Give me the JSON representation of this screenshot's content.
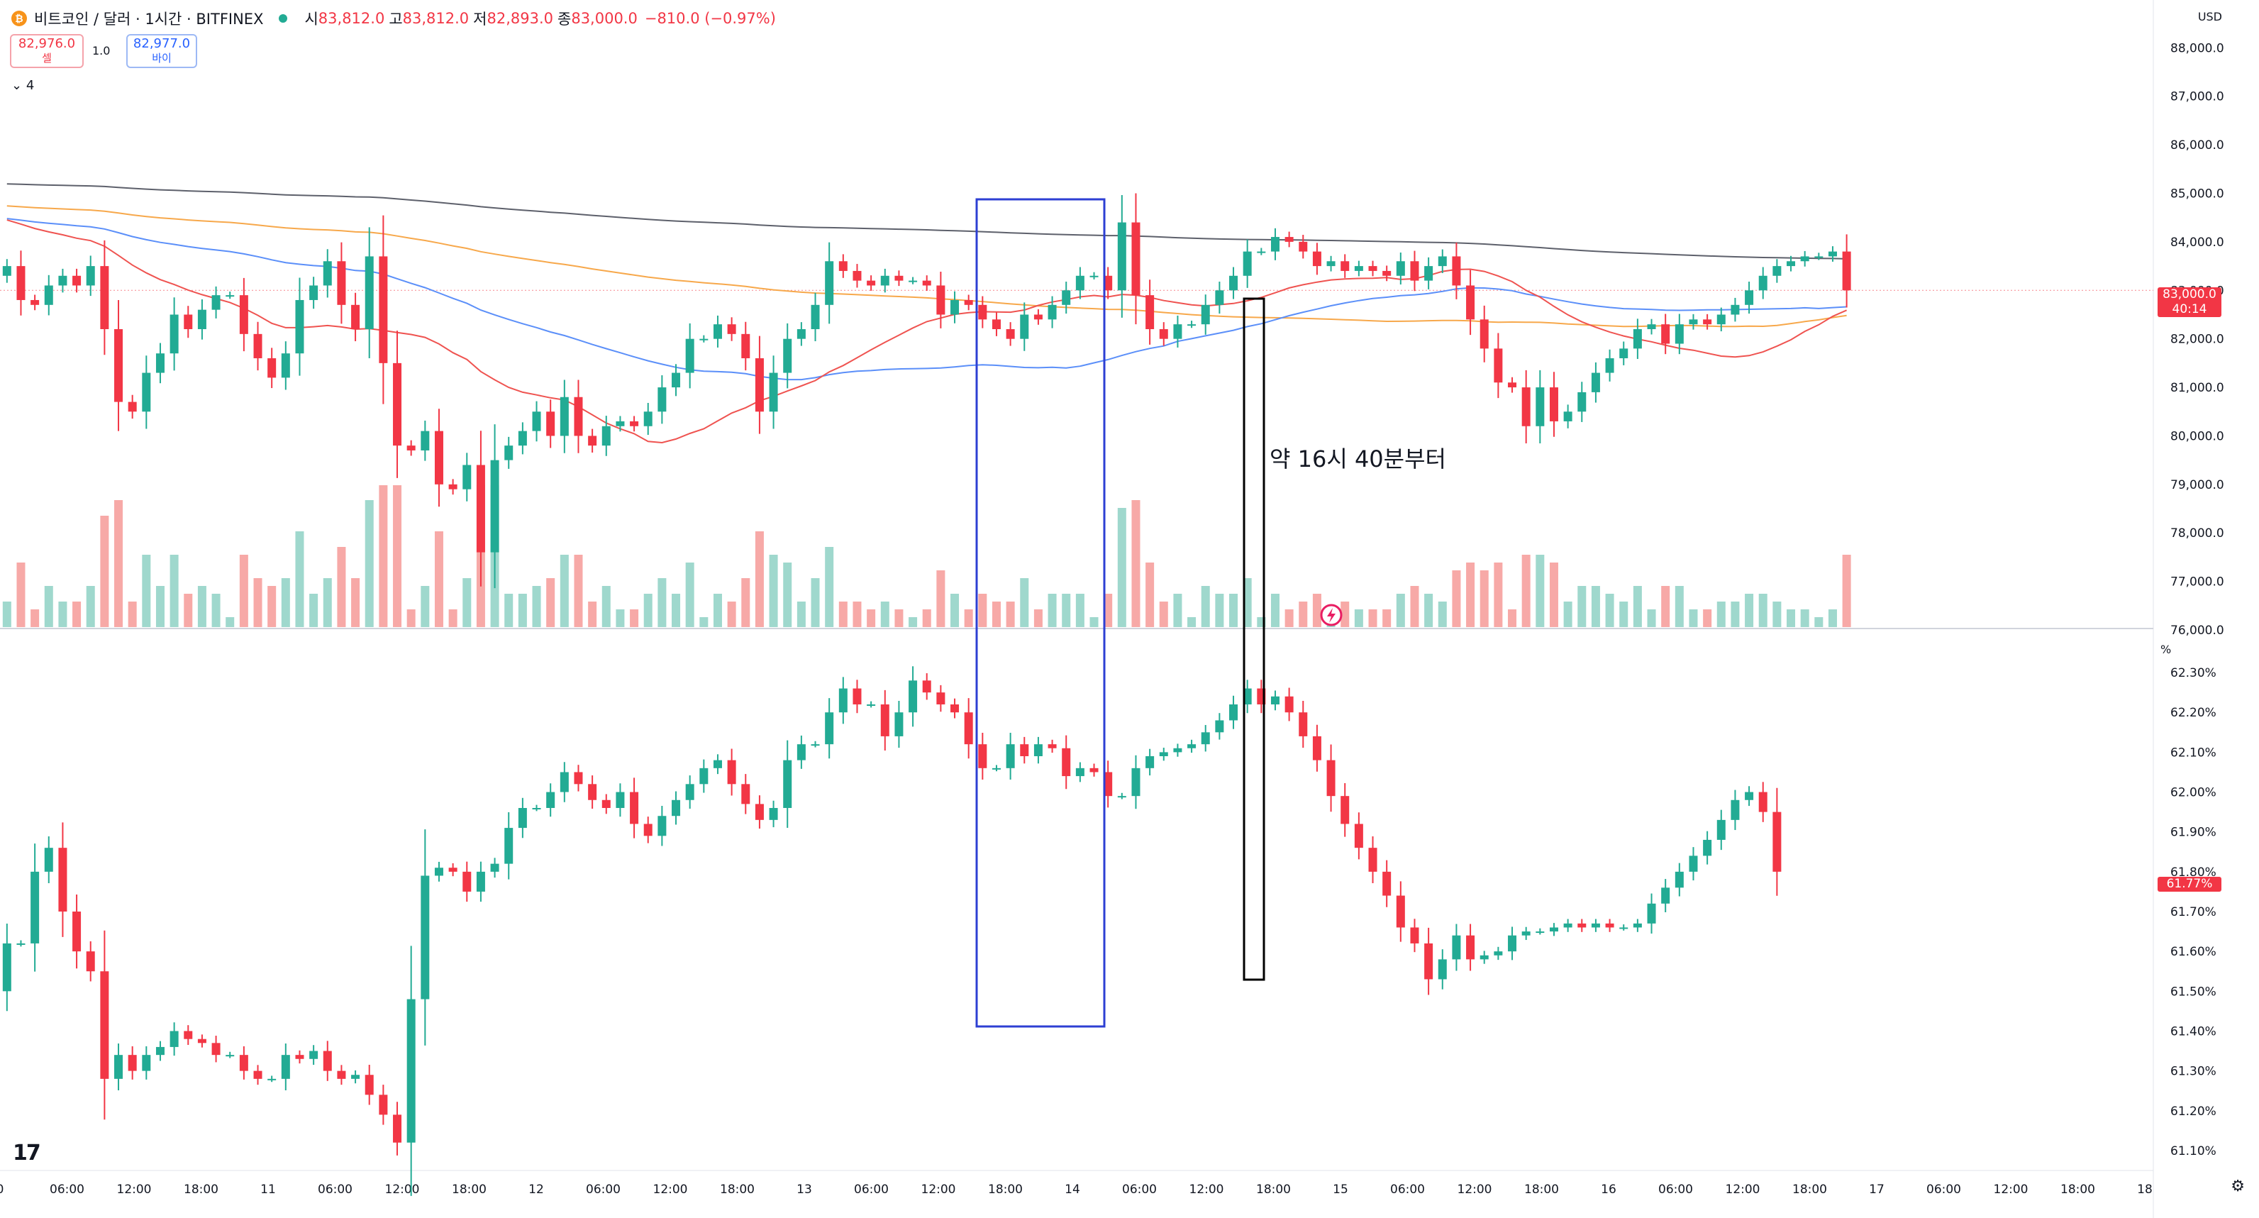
{
  "header": {
    "symbol_title": "비트코인 / 달러 · 1시간 · BITFINEX",
    "open_label": "시",
    "open_value": "83,812.0",
    "high_label": "고",
    "high_value": "83,812.0",
    "low_label": "저",
    "low_value": "82,893.0",
    "close_label": "종",
    "close_value": "83,000.0",
    "change_value": "−810.0 (−0.97%)",
    "sell_price": "82,976.0",
    "sell_label": "셀",
    "buy_price": "82,977.0",
    "buy_label": "바이",
    "spread": "1.0",
    "indicator_count": "4"
  },
  "currency_label": "USD",
  "percent_label": "%",
  "annotation": "약 16시 40분부터",
  "colors": {
    "up": "#22ab94",
    "down": "#f23645",
    "vol_up": "#9fd8cd",
    "vol_down": "#f7a9a7",
    "ma_gray": "#5d606b",
    "ma_orange": "#f7a84b",
    "ma_blue": "#5b8ff9",
    "ma_red": "#ef5350",
    "box_blue": "#2d3fd3",
    "box_black": "#000000"
  },
  "icons": {
    "logo": "bitcoin-icon",
    "status": "market-open-dot-icon",
    "settings": "gear-icon",
    "lightning": "lightning-icon"
  },
  "chart_data": [
    {
      "type": "candlestick",
      "series_name": "비트코인 / 달러 · 1시간 · BITFINEX",
      "ylim": [
        76000,
        88400
      ],
      "y_ticks": [
        76000,
        77000,
        78000,
        79000,
        80000,
        81000,
        82000,
        83000,
        84000,
        85000,
        86000,
        87000,
        88000
      ],
      "y_tick_labels": [
        "76,000.0",
        "77,000.0",
        "78,000.0",
        "79,000.0",
        "80,000.0",
        "81,000.0",
        "82,000.0",
        "83,000.0",
        "84,000.0",
        "85,000.0",
        "86,000.0",
        "87,000.0",
        "88,000.0"
      ],
      "last_price_label": "83,000.0",
      "countdown_label": "40:14",
      "last_price": 83000,
      "candles_start_hour": 0,
      "candles_close": [
        83500,
        82800,
        82700,
        83100,
        83300,
        83100,
        83500,
        82200,
        80700,
        80500,
        81300,
        81700,
        82500,
        82200,
        82600,
        82900,
        82900,
        82100,
        81600,
        81200,
        81700,
        82800,
        83100,
        83600,
        82700,
        82200,
        83700,
        81500,
        79800,
        79700,
        80100,
        79000,
        78900,
        79400,
        77600,
        79500,
        79800,
        80100,
        80500,
        80000,
        80800,
        80000,
        79800,
        80200,
        80300,
        80200,
        80500,
        81000,
        81300,
        82000,
        82000,
        82300,
        82100,
        81600,
        80500,
        81300,
        82000,
        82200,
        82700,
        83600,
        83400,
        83200,
        83100,
        83300,
        83200,
        83200,
        83100,
        82500,
        82800,
        82700,
        82400,
        82200,
        82000,
        82500,
        82400,
        82700,
        83000,
        83300,
        83300,
        83000,
        84400,
        82900,
        82200,
        82000,
        82300,
        82300,
        82700,
        83000,
        83300,
        83800,
        83800,
        84100,
        84000,
        83800,
        83500,
        83600,
        83400,
        83500,
        83400,
        83300,
        83600,
        83200,
        83500,
        83700,
        83100,
        82400,
        81800,
        81100,
        81000,
        80200,
        81000,
        80300,
        80500,
        80900,
        81300,
        81600,
        81800,
        82200,
        82300,
        81900,
        82300,
        82400,
        82300,
        82500,
        82700,
        83000,
        83300,
        83500,
        83600,
        83700,
        83700,
        83800,
        83000
      ],
      "x_tick_labels": [
        "0",
        "06:00",
        "12:00",
        "18:00",
        "11",
        "06:00",
        "12:00",
        "18:00",
        "12",
        "06:00",
        "12:00",
        "18:00",
        "13",
        "06:00",
        "12:00",
        "18:00",
        "14",
        "06:00",
        "12:00",
        "18:00",
        "15",
        "06:00",
        "12:00",
        "18:00",
        "16",
        "06:00",
        "12:00",
        "18:00",
        "17",
        "06:00",
        "12:00",
        "18:00",
        "18"
      ]
    },
    {
      "type": "candlestick",
      "series_name": "BTC dominance",
      "y_unit": "%",
      "ylim": [
        61.05,
        62.35
      ],
      "y_ticks": [
        61.1,
        61.2,
        61.3,
        61.4,
        61.5,
        61.6,
        61.7,
        61.8,
        61.9,
        62.0,
        62.1,
        62.2,
        62.3
      ],
      "y_tick_labels": [
        "61.10%",
        "61.20%",
        "61.30%",
        "61.40%",
        "61.50%",
        "61.60%",
        "61.70%",
        "61.80%",
        "61.90%",
        "62.00%",
        "62.10%",
        "62.20%",
        "62.30%"
      ],
      "last_value_label": "61.77%",
      "last_value": 61.77,
      "candles_close": [
        61.62,
        61.62,
        61.8,
        61.86,
        61.7,
        61.6,
        61.55,
        61.28,
        61.34,
        61.3,
        61.34,
        61.36,
        61.4,
        61.38,
        61.37,
        61.34,
        61.34,
        61.3,
        61.28,
        61.28,
        61.34,
        61.33,
        61.35,
        61.3,
        61.28,
        61.29,
        61.24,
        61.19,
        61.12,
        61.48,
        61.79,
        61.81,
        61.8,
        61.75,
        61.8,
        61.82,
        61.91,
        61.96,
        61.96,
        62.0,
        62.05,
        62.02,
        61.98,
        61.96,
        62.0,
        61.92,
        61.89,
        61.94,
        61.98,
        62.02,
        62.06,
        62.08,
        62.02,
        61.97,
        61.93,
        61.96,
        62.08,
        62.12,
        62.12,
        62.2,
        62.26,
        62.22,
        62.22,
        62.14,
        62.2,
        62.28,
        62.25,
        62.22,
        62.2,
        62.12,
        62.06,
        62.06,
        62.12,
        62.09,
        62.12,
        62.11,
        62.04,
        62.06,
        62.05,
        61.99,
        61.99,
        62.06,
        62.09,
        62.1,
        62.11,
        62.12,
        62.15,
        62.18,
        62.22,
        62.26,
        62.22,
        62.24,
        62.2,
        62.14,
        62.08,
        61.99,
        61.92,
        61.86,
        61.8,
        61.74,
        61.66,
        61.62,
        61.53,
        61.58,
        61.64,
        61.58,
        61.59,
        61.6,
        61.64,
        61.65,
        61.65,
        61.66,
        61.67,
        61.66,
        61.67,
        61.66,
        61.66,
        61.67,
        61.72,
        61.76,
        61.8,
        61.84,
        61.88,
        61.93,
        61.98,
        62.0,
        61.95,
        61.8
      ]
    }
  ]
}
